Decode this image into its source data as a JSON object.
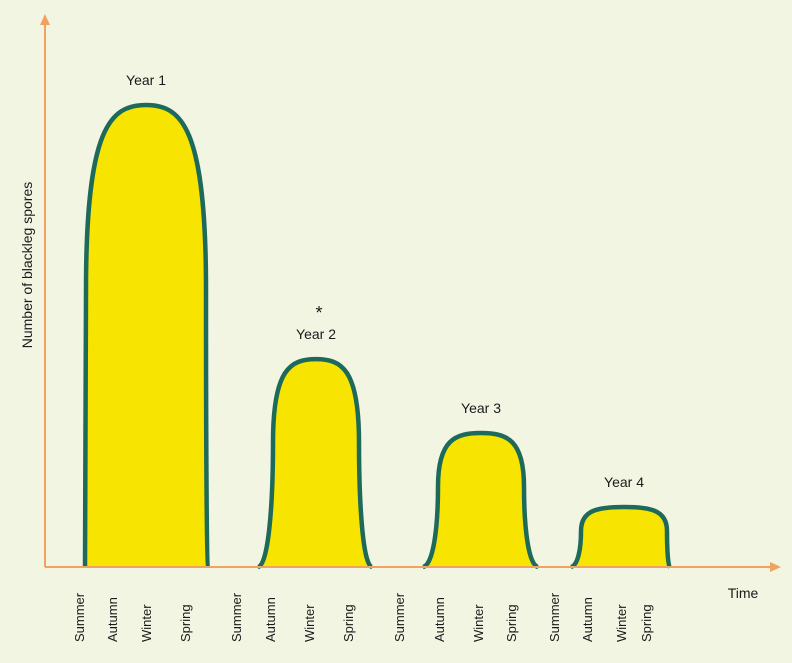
{
  "chart_data": {
    "type": "area",
    "title": "",
    "xlabel": "Time",
    "ylabel": "Number of blackleg spores",
    "ylim": [
      0,
      100
    ],
    "season_ticks": [
      "Summer",
      "Autumn",
      "Winter",
      "Spring",
      "Summer",
      "Autumn",
      "Winter",
      "Spring",
      "Summer",
      "Autumn",
      "Winter",
      "Spring",
      "Summer",
      "Autumn",
      "Winter",
      "Spring"
    ],
    "series": [
      {
        "name": "Year 1",
        "peak": 100,
        "annotation": ""
      },
      {
        "name": "Year 2",
        "peak": 45,
        "annotation": "*"
      },
      {
        "name": "Year 3",
        "peak": 29,
        "annotation": ""
      },
      {
        "name": "Year 4",
        "peak": 13,
        "annotation": ""
      }
    ],
    "colors": {
      "fill": "#f7e400",
      "stroke": "#1e6a5a",
      "axis": "#f0a35e"
    }
  }
}
